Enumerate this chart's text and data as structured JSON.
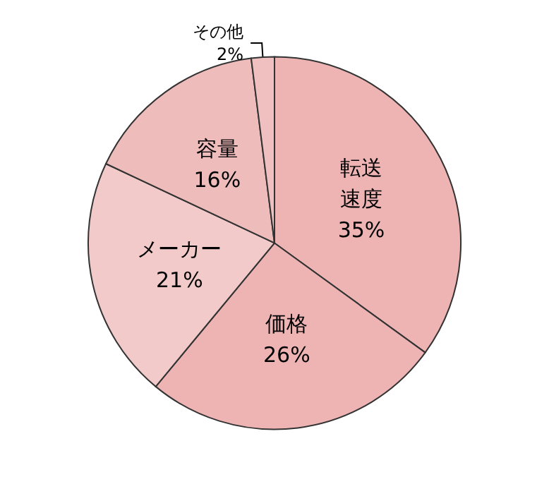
{
  "chart_data": {
    "type": "pie",
    "categories": [
      "転送速度",
      "価格",
      "メーカー",
      "容量",
      "その他"
    ],
    "values": [
      35,
      26,
      21,
      16,
      2
    ],
    "value_labels": [
      "35%",
      "26%",
      "21%",
      "16%",
      "2%"
    ],
    "colors": [
      "#eeb4b4",
      "#eeb4b4",
      "#f3caca",
      "#efbcbc",
      "#f0c0c0"
    ],
    "legend": false
  }
}
